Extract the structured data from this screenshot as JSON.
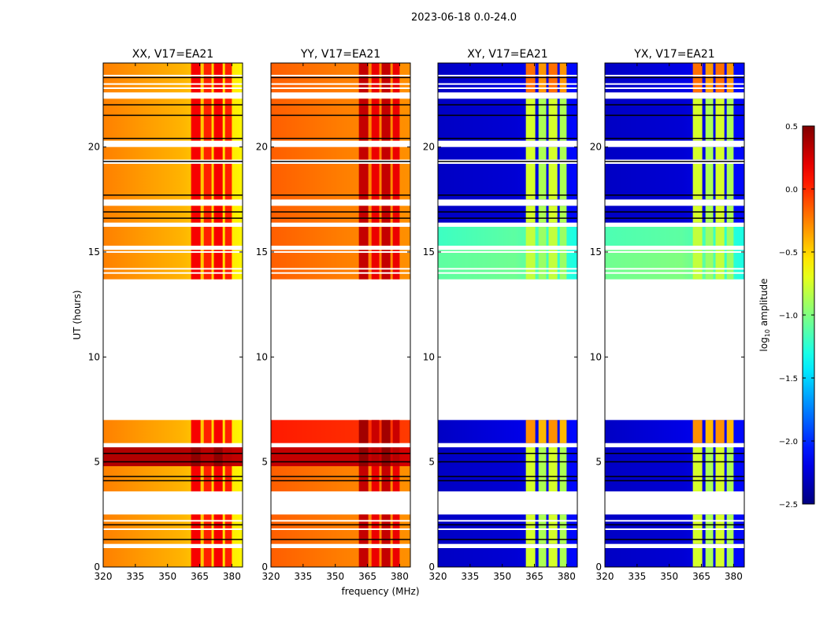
{
  "chart_data": {
    "type": "heatmap",
    "title": "2023-06-18 0.0-24.0",
    "xlabel": "frequency (MHz)",
    "ylabel": "UT (hours)",
    "xlim": [
      320,
      385
    ],
    "ylim": [
      0,
      24
    ],
    "xticks": [
      320,
      335,
      350,
      365,
      380
    ],
    "yticks": [
      0,
      5,
      10,
      15,
      20
    ],
    "colorbar": {
      "label_main": "log",
      "label_sub": "10",
      "label_rest": " amplitude",
      "range": [
        -2.5,
        0.5
      ],
      "ticks": [
        0.5,
        0.0,
        -0.5,
        -1.0,
        -1.5,
        -2.0,
        -2.5
      ],
      "tick_labels": [
        "0.5",
        "0.0",
        "−0.5",
        "−1.0",
        "−1.5",
        "−2.0",
        "−2.5"
      ],
      "colormap": "jet"
    },
    "time_segments_hours": [
      [
        0,
        0.9
      ],
      [
        1.1,
        2.5
      ],
      [
        3.6,
        4.8
      ],
      [
        4.8,
        5.7
      ],
      [
        5.9,
        7.0
      ],
      [
        13.7,
        15.1
      ],
      [
        15.3,
        16.2
      ],
      [
        16.4,
        17.2
      ],
      [
        17.5,
        19.2
      ],
      [
        19.4,
        20.0
      ],
      [
        20.3,
        22.3
      ],
      [
        22.6,
        24.0
      ]
    ],
    "rfi_subbands_mhz": [
      [
        361,
        365.4
      ],
      [
        366.9,
        370.5
      ],
      [
        371.6,
        375.7
      ],
      [
        376.8,
        380
      ]
    ],
    "flagged_rows_black_hours": [
      1.3,
      2.0,
      4.1,
      4.3,
      5.0,
      5.4,
      16.6,
      16.9,
      17.7,
      19.3,
      20.4,
      21.5,
      22.0,
      23.3
    ],
    "flagged_rows_white_hours": [
      1.8,
      2.2,
      14.0,
      14.2,
      15.0,
      22.8,
      23.0,
      23.4
    ],
    "panels": [
      {
        "title": "XX, V17=EA21",
        "background_log_amp": [
          -0.25,
          -0.4,
          -0.6
        ],
        "rfi_log_amp": 0.15,
        "overrides": [
          {
            "segment": 3,
            "background_log_amp": [
              0.35,
              0.35,
              0.3
            ],
            "rfi_log_amp": 0.45
          }
        ]
      },
      {
        "title": "YY, V17=EA21",
        "background_log_amp": [
          -0.15,
          -0.25,
          -0.3
        ],
        "rfi_log_amp": 0.3,
        "overrides": [
          {
            "segment": 3,
            "background_log_amp": [
              0.3,
              0.3,
              0.25
            ],
            "rfi_log_amp": 0.45
          },
          {
            "segment": 4,
            "background_log_amp": [
              0.05,
              0.0,
              -0.05
            ],
            "rfi_log_amp": 0.4
          }
        ]
      },
      {
        "title": "XY, V17=EA21",
        "background_log_amp": [
          -2.3,
          -2.25,
          -2.1
        ],
        "rfi_log_amp": -0.75,
        "overrides": [
          {
            "segment": 5,
            "background_log_amp": [
              -1.1,
              -1.05,
              -1.3
            ],
            "rfi_log_amp": -0.8
          },
          {
            "segment": 6,
            "background_log_amp": [
              -1.2,
              -1.1,
              -1.3
            ],
            "rfi_log_amp": -0.8
          },
          {
            "segment": 11,
            "background_log_amp": [
              -2.3,
              -2.2,
              -2.1
            ],
            "rfi_log_amp": -0.2
          },
          {
            "segment": 4,
            "background_log_amp": [
              -2.3,
              -2.2,
              -2.1
            ],
            "rfi_log_amp": -0.3
          }
        ]
      },
      {
        "title": "YX, V17=EA21",
        "background_log_amp": [
          -2.3,
          -2.25,
          -2.1
        ],
        "rfi_log_amp": -0.75,
        "overrides": [
          {
            "segment": 5,
            "background_log_amp": [
              -1.05,
              -1.0,
              -1.3
            ],
            "rfi_log_amp": -0.8
          },
          {
            "segment": 6,
            "background_log_amp": [
              -1.15,
              -1.1,
              -1.3
            ],
            "rfi_log_amp": -0.8
          },
          {
            "segment": 11,
            "background_log_amp": [
              -2.3,
              -2.2,
              -2.1
            ],
            "rfi_log_amp": -0.2
          },
          {
            "segment": 4,
            "background_log_amp": [
              -2.3,
              -2.2,
              -2.1
            ],
            "rfi_log_amp": -0.3
          }
        ]
      }
    ]
  }
}
